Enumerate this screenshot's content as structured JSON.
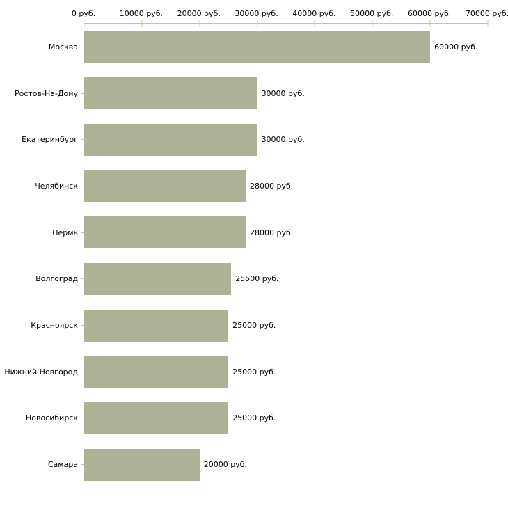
{
  "chart_data": {
    "type": "bar",
    "orientation": "horizontal",
    "title": "",
    "categories": [
      "Москва",
      "Ростов-На-Дону",
      "Екатеринбург",
      "Челябинск",
      "Пермь",
      "Волгоград",
      "Красноярск",
      "Нижний Новгород",
      "Новосибирск",
      "Самара"
    ],
    "values": [
      60000,
      30000,
      30000,
      28000,
      28000,
      25500,
      25000,
      25000,
      25000,
      20000
    ],
    "value_labels": [
      "60000 руб.",
      "30000 руб.",
      "30000 руб.",
      "28000 руб.",
      "28000 руб.",
      "25500 руб.",
      "25000 руб.",
      "25000 руб.",
      "25000 руб.",
      "20000 руб."
    ],
    "x_axis": {
      "position": "top",
      "range": [
        0,
        70000
      ],
      "ticks": [
        0,
        10000,
        20000,
        30000,
        40000,
        50000,
        60000,
        70000
      ],
      "tick_labels": [
        "0 руб.",
        "10000 руб.",
        "20000 руб.",
        "30000 руб.",
        "40000 руб.",
        "50000 руб.",
        "60000 руб.",
        "70000 руб."
      ]
    },
    "grid": false,
    "legend": false,
    "colors": {
      "bar": "#abb296",
      "axis_line": "#c0c0c0",
      "x_tick": "#c8cc96",
      "y_tick": "#c2c4ac",
      "text": "#000000",
      "background": "#ffffff"
    }
  }
}
